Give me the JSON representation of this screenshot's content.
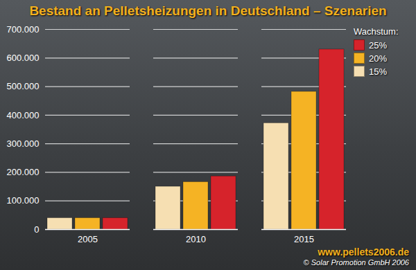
{
  "chart_data": {
    "type": "bar",
    "title": "Bestand an Pelletsheizungen in Deutschland – Szenarien",
    "categories": [
      "2005",
      "2010",
      "2015"
    ],
    "series": [
      {
        "name": "15%",
        "color": "#f6dfb2",
        "values": [
          40000,
          150000,
          372000
        ]
      },
      {
        "name": "20%",
        "color": "#f5b324",
        "values": [
          40000,
          166000,
          482000
        ]
      },
      {
        "name": "25%",
        "color": "#d6232b",
        "values": [
          40000,
          186000,
          630000
        ]
      }
    ],
    "legend_title": "Wachstum:",
    "legend": "right",
    "ylim": [
      0,
      700000
    ],
    "yticks": [
      0,
      {
        "value": 100000,
        "label": "100.000"
      },
      {
        "value": 200000,
        "label": "200.000"
      },
      {
        "value": 300000,
        "label": "300.000"
      },
      {
        "value": 400000,
        "label": "400.000"
      },
      {
        "value": 500000,
        "label": "500.000"
      },
      {
        "value": 600000,
        "label": "600.000"
      },
      {
        "value": 700000,
        "label": "700.000"
      }
    ],
    "grid": true,
    "annotations": [
      "www.pellets2006.de",
      "© Solar Promotion GmbH 2006"
    ]
  }
}
